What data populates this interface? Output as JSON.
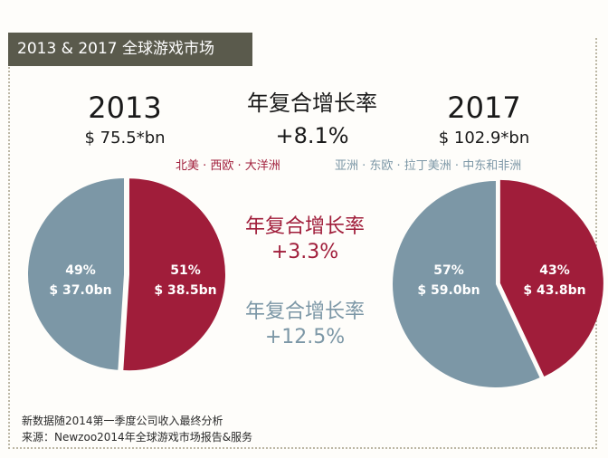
{
  "title": "2013 & 2017 全球游戏市场",
  "cagr_total": {
    "label": "年复合增长率",
    "value": "+8.1%"
  },
  "cagr_red": {
    "label": "年复合增长率",
    "value": "+3.3%"
  },
  "cagr_blue": {
    "label": "年复合增长率",
    "value": "+12.5%"
  },
  "regions_red": "北美 · 西欧 · 大洋洲",
  "regions_blue": "亚洲 · 东欧 · 拉丁美洲 · 中东和非洲",
  "footnote_1": "新数据随2014第一季度公司收入最终分析",
  "footnote_2": "来源：Newzoo2014年全球游戏市场报告&服务",
  "colors": {
    "red": "#a01d3a",
    "blue": "#7c97a6",
    "title_bg": "#5a5a4c"
  },
  "chart_data": [
    {
      "type": "pie",
      "title": "2013",
      "total_label": "$ 75.5*bn",
      "slices": [
        {
          "name": "北美 · 西欧 · 大洋洲",
          "percent": 51,
          "percent_label": "51%",
          "value_label": "$ 38.5bn",
          "value": 38.5,
          "color": "#a01d3a"
        },
        {
          "name": "亚洲 · 东欧 · 拉丁美洲 · 中东和非洲",
          "percent": 49,
          "percent_label": "49%",
          "value_label": "$ 37.0bn",
          "value": 37.0,
          "color": "#7c97a6"
        }
      ]
    },
    {
      "type": "pie",
      "title": "2017",
      "total_label": "$ 102.9*bn",
      "slices": [
        {
          "name": "北美 · 西欧 · 大洋洲",
          "percent": 43,
          "percent_label": "43%",
          "value_label": "$ 43.8bn",
          "value": 43.8,
          "color": "#a01d3a"
        },
        {
          "name": "亚洲 · 东欧 · 拉丁美洲 · 中东和非洲",
          "percent": 57,
          "percent_label": "57%",
          "value_label": "$ 59.0bn",
          "value": 59.0,
          "color": "#7c97a6"
        }
      ]
    }
  ]
}
